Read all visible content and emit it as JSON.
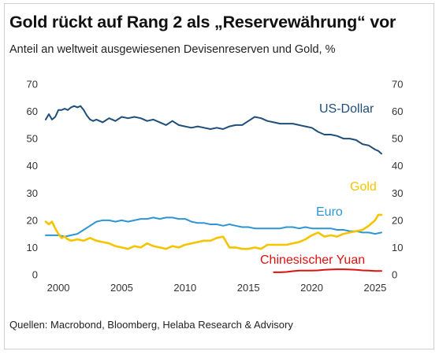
{
  "header": {
    "title": "Gold rückt auf Rang 2 als „Reservewährung“ vor",
    "subtitle": "Anteil an weltweit ausgewiesenen Devisenreserven und Gold, %"
  },
  "footer": {
    "source": "Quellen: Macrobond, Bloomberg, Helaba Research & Advisory"
  },
  "chart_data": {
    "type": "line",
    "title": "Gold rückt auf Rang 2 als „Reservewährung“ vor",
    "subtitle": "Anteil an weltweit ausgewiesenen Devisenreserven und Gold, %",
    "xlabel": "",
    "ylabel": "",
    "xlim": [
      1999,
      2025.75
    ],
    "ylim": [
      0,
      70
    ],
    "y_ticks": [
      0,
      10,
      20,
      30,
      40,
      50,
      60,
      70
    ],
    "x_ticks": [
      2000,
      2005,
      2010,
      2015,
      2020,
      2025
    ],
    "grid": false,
    "dual_y_axis_mirrored": true,
    "legend": "direct labels",
    "series": [
      {
        "name": "US-Dollar",
        "color": "#1f4e79",
        "x": [
          1999.0,
          1999.25,
          1999.5,
          1999.75,
          2000.0,
          2000.25,
          2000.5,
          2000.75,
          2001.0,
          2001.25,
          2001.5,
          2001.75,
          2002.0,
          2002.25,
          2002.5,
          2002.75,
          2003.0,
          2003.5,
          2004.0,
          2004.5,
          2005.0,
          2005.5,
          2006.0,
          2006.5,
          2007.0,
          2007.5,
          2008.0,
          2008.5,
          2009.0,
          2009.5,
          2010.0,
          2010.5,
          2011.0,
          2011.5,
          2012.0,
          2012.5,
          2013.0,
          2013.5,
          2014.0,
          2014.5,
          2015.0,
          2015.5,
          2016.0,
          2016.5,
          2017.0,
          2017.5,
          2018.0,
          2018.5,
          2019.0,
          2019.5,
          2020.0,
          2020.5,
          2021.0,
          2021.5,
          2022.0,
          2022.5,
          2023.0,
          2023.5,
          2024.0,
          2024.5,
          2025.0,
          2025.25,
          2025.5
        ],
        "values": [
          57.0,
          59.0,
          57.0,
          58.0,
          60.5,
          60.5,
          61.0,
          60.5,
          61.5,
          62.0,
          61.5,
          62.0,
          60.5,
          58.5,
          57.0,
          56.5,
          57.0,
          56.0,
          57.5,
          56.5,
          58.0,
          57.5,
          58.0,
          57.5,
          56.5,
          57.0,
          56.0,
          55.0,
          56.5,
          55.0,
          54.5,
          54.0,
          54.5,
          54.0,
          53.5,
          54.0,
          53.5,
          54.5,
          55.0,
          55.0,
          56.5,
          58.0,
          57.5,
          56.5,
          56.0,
          55.5,
          55.5,
          55.5,
          55.0,
          54.5,
          54.0,
          52.5,
          51.5,
          51.5,
          51.0,
          50.0,
          50.0,
          49.5,
          48.0,
          47.5,
          46.0,
          45.5,
          44.5
        ]
      },
      {
        "name": "Gold",
        "color": "#f5c400",
        "x": [
          1999.0,
          1999.25,
          1999.5,
          1999.75,
          2000.0,
          2000.25,
          2000.5,
          2000.75,
          2001.0,
          2001.5,
          2002.0,
          2002.5,
          2003.0,
          2003.5,
          2004.0,
          2004.5,
          2005.0,
          2005.5,
          2006.0,
          2006.5,
          2007.0,
          2007.5,
          2008.0,
          2008.5,
          2009.0,
          2009.5,
          2010.0,
          2010.5,
          2011.0,
          2011.5,
          2012.0,
          2012.5,
          2013.0,
          2013.25,
          2013.5,
          2014.0,
          2014.5,
          2015.0,
          2015.5,
          2016.0,
          2016.5,
          2017.0,
          2017.5,
          2018.0,
          2018.5,
          2019.0,
          2019.5,
          2020.0,
          2020.5,
          2021.0,
          2021.5,
          2022.0,
          2022.5,
          2023.0,
          2023.5,
          2024.0,
          2024.5,
          2025.0,
          2025.25,
          2025.5
        ],
        "values": [
          19.5,
          18.5,
          19.5,
          17.0,
          15.0,
          13.5,
          14.0,
          13.0,
          12.5,
          13.0,
          12.5,
          13.5,
          12.5,
          12.0,
          11.5,
          10.5,
          10.0,
          9.5,
          10.5,
          10.0,
          11.5,
          10.5,
          10.0,
          9.5,
          10.5,
          10.0,
          11.0,
          11.5,
          12.0,
          12.5,
          12.5,
          13.5,
          14.0,
          12.0,
          10.0,
          10.0,
          9.5,
          9.5,
          10.0,
          9.5,
          11.0,
          11.0,
          11.0,
          11.0,
          11.5,
          12.0,
          13.0,
          14.5,
          15.5,
          14.0,
          14.5,
          14.0,
          15.0,
          15.5,
          16.0,
          16.5,
          18.0,
          20.0,
          22.0,
          22.0
        ]
      },
      {
        "name": "Euro",
        "color": "#2e95d3",
        "x": [
          1999.0,
          1999.5,
          2000.0,
          2000.5,
          2001.0,
          2001.5,
          2002.0,
          2002.5,
          2003.0,
          2003.5,
          2004.0,
          2004.5,
          2005.0,
          2005.5,
          2006.0,
          2006.5,
          2007.0,
          2007.5,
          2008.0,
          2008.5,
          2009.0,
          2009.5,
          2010.0,
          2010.5,
          2011.0,
          2011.5,
          2012.0,
          2012.5,
          2013.0,
          2013.5,
          2014.0,
          2014.5,
          2015.0,
          2015.5,
          2016.0,
          2016.5,
          2017.0,
          2017.5,
          2018.0,
          2018.5,
          2019.0,
          2019.5,
          2020.0,
          2020.5,
          2021.0,
          2021.5,
          2022.0,
          2022.5,
          2023.0,
          2023.5,
          2024.0,
          2024.5,
          2025.0,
          2025.5
        ],
        "values": [
          14.5,
          14.5,
          14.5,
          14.0,
          14.5,
          15.0,
          16.5,
          18.0,
          19.5,
          20.0,
          20.0,
          19.5,
          20.0,
          19.5,
          20.0,
          20.5,
          20.5,
          21.0,
          20.5,
          21.0,
          21.0,
          20.5,
          20.5,
          19.5,
          19.0,
          19.0,
          18.5,
          18.5,
          18.0,
          18.5,
          18.0,
          17.5,
          17.5,
          17.0,
          17.0,
          17.0,
          17.0,
          17.0,
          17.5,
          17.5,
          17.0,
          17.5,
          17.0,
          17.0,
          17.0,
          17.0,
          16.5,
          16.5,
          16.0,
          16.0,
          15.5,
          15.5,
          15.0,
          15.5
        ]
      },
      {
        "name": "Chinesischer Yuan",
        "color": "#e01010",
        "x": [
          2017.0,
          2017.5,
          2018.0,
          2018.5,
          2019.0,
          2019.5,
          2020.0,
          2020.5,
          2021.0,
          2021.5,
          2022.0,
          2022.5,
          2023.0,
          2023.5,
          2024.0,
          2024.5,
          2025.0,
          2025.5
        ],
        "values": [
          0.9,
          0.9,
          1.0,
          1.3,
          1.5,
          1.5,
          1.5,
          1.6,
          1.8,
          1.9,
          2.0,
          2.0,
          1.9,
          1.8,
          1.6,
          1.5,
          1.4,
          1.4
        ]
      }
    ]
  }
}
